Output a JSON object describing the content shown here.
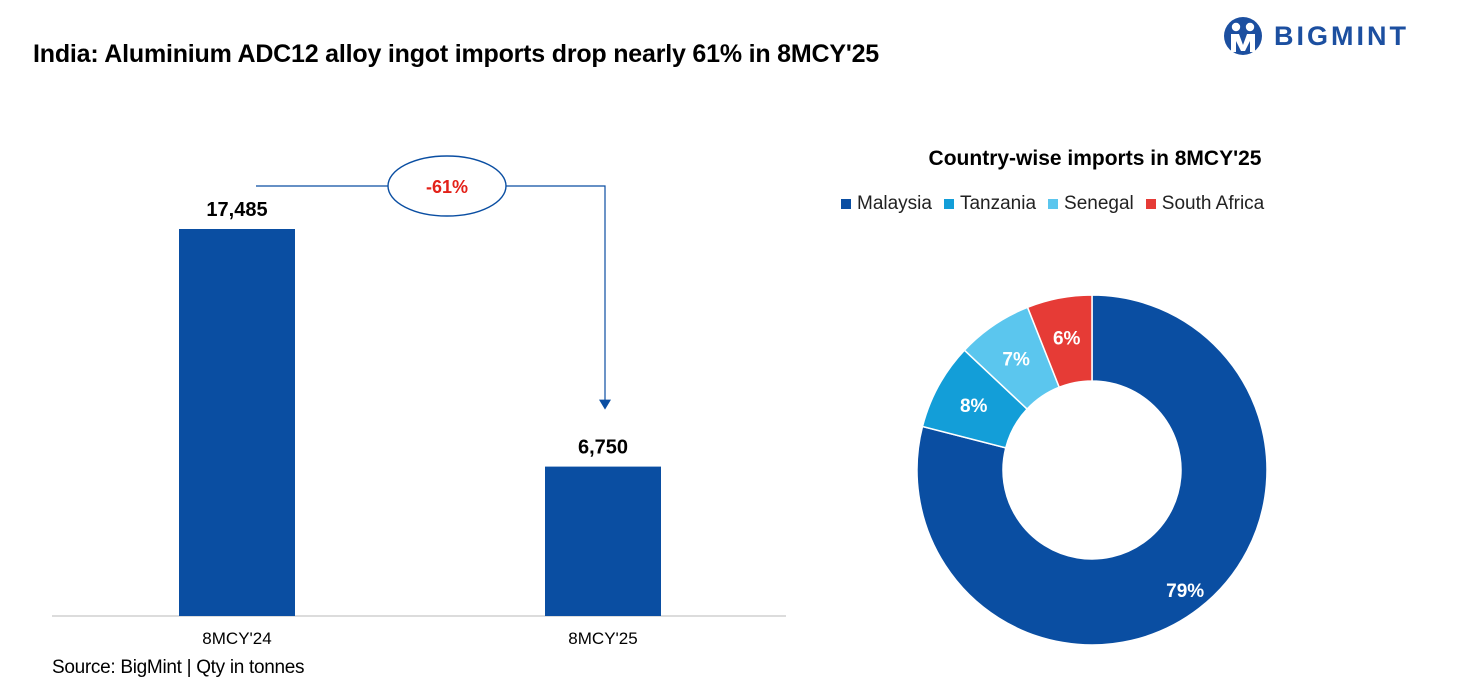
{
  "title": "India: Aluminium ADC12 alloy ingot imports drop nearly 61% in 8MCY'25",
  "logo_text": "BIGMINT",
  "source": "Source: BigMint | Qty in tonnes",
  "colors": {
    "bar": "#0a4ea2",
    "malaysia": "#0a4ea2",
    "tanzania": "#139ed8",
    "senegal": "#5bc6ee",
    "south_africa": "#e63b36",
    "annotation": "#e32119",
    "connector": "#0a4ea2"
  },
  "chart_data": [
    {
      "type": "bar",
      "categories": [
        "8MCY'24",
        "8MCY'25"
      ],
      "values": [
        17485,
        6750
      ],
      "value_labels": [
        "17,485",
        "6,750"
      ],
      "change_label": "-61%",
      "ylim": [
        0,
        18000
      ],
      "title": "",
      "xlabel": "",
      "ylabel": ""
    },
    {
      "type": "pie",
      "title": "Country-wise imports in 8MCY'25",
      "labels": [
        "Malaysia",
        "Tanzania",
        "Senegal",
        "South Africa"
      ],
      "values": [
        79,
        8,
        7,
        6
      ],
      "value_labels": [
        "79%",
        "8%",
        "7%",
        "6%"
      ],
      "legend": "top"
    }
  ]
}
